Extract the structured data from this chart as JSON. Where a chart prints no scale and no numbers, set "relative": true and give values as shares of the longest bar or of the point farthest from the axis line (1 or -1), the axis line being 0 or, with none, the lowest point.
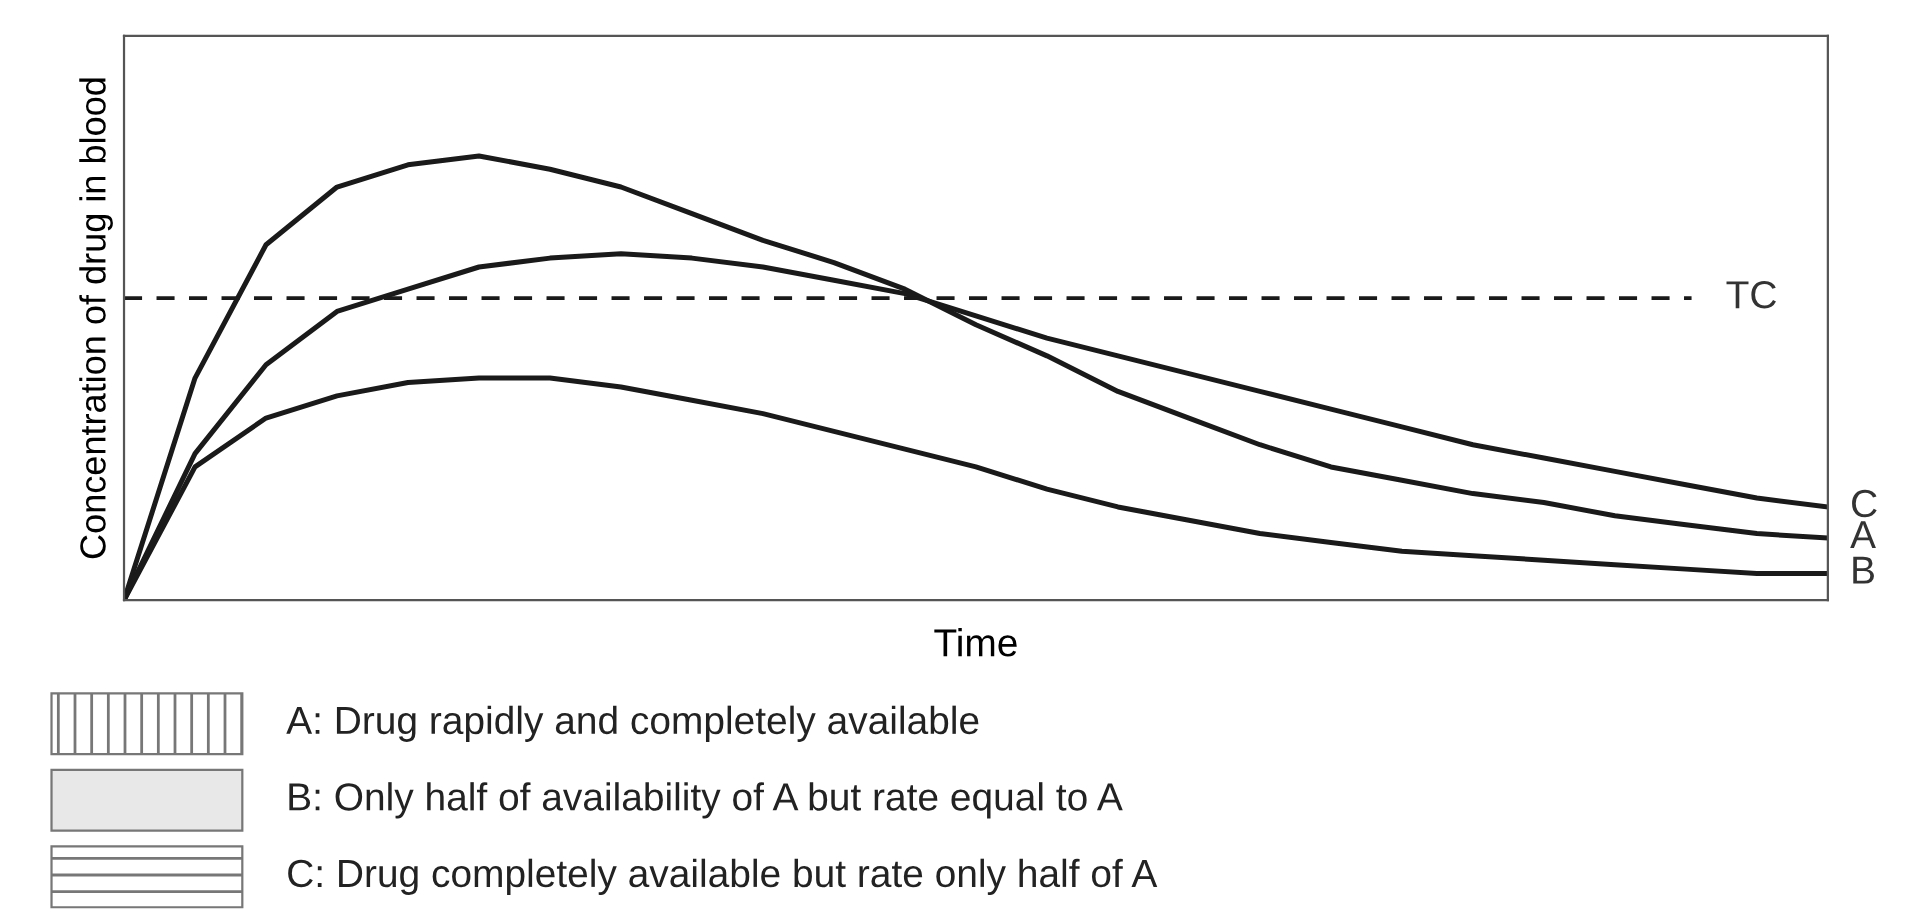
{
  "chart_data": {
    "type": "line",
    "relative": true,
    "xlabel": "Time",
    "ylabel": "Concentration of drug in blood",
    "categories": [
      null,
      null,
      null,
      null,
      null,
      null,
      null,
      null,
      null,
      null,
      null,
      null,
      null,
      null,
      null,
      null,
      null,
      null,
      null,
      null,
      null,
      null,
      null,
      null,
      null
    ],
    "series": [
      {
        "name": "A",
        "color": "#1a1a1a",
        "values": [
          0,
          0.5,
          0.8,
          0.93,
          0.98,
          1.0,
          0.97,
          0.93,
          0.87,
          0.81,
          0.76,
          0.7,
          0.62,
          0.55,
          0.47,
          0.41,
          0.35,
          0.3,
          0.27,
          0.24,
          0.22,
          0.19,
          0.17,
          0.15,
          0.14
        ]
      },
      {
        "name": "B",
        "color": "#1a1a1a",
        "values": [
          0,
          0.3,
          0.41,
          0.46,
          0.49,
          0.5,
          0.5,
          0.48,
          0.45,
          0.42,
          0.38,
          0.34,
          0.3,
          0.25,
          0.21,
          0.18,
          0.15,
          0.13,
          0.11,
          0.1,
          0.09,
          0.08,
          0.07,
          0.06,
          0.06
        ]
      },
      {
        "name": "C",
        "color": "#1a1a1a",
        "values": [
          0,
          0.33,
          0.53,
          0.65,
          0.7,
          0.75,
          0.77,
          0.78,
          0.77,
          0.75,
          0.72,
          0.69,
          0.64,
          0.59,
          0.55,
          0.51,
          0.47,
          0.43,
          0.39,
          0.35,
          0.32,
          0.29,
          0.26,
          0.23,
          0.21
        ]
      }
    ],
    "ref_lines": [
      {
        "axis": "y",
        "value": 0.68,
        "label": "TC",
        "line_style": "dashed",
        "color": "#1a1a1a"
      }
    ],
    "legend": false,
    "marker": "none",
    "line_style": "solid",
    "annotations": [
      "A: Drug rapidly and completely available",
      "B: Only half of availability of A but rate equal to A",
      "C: Drug completely available but rate only half of A"
    ]
  }
}
